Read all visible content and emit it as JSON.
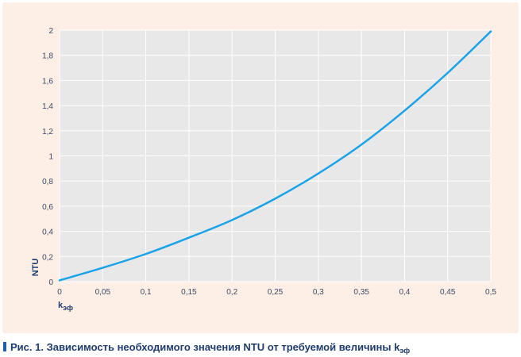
{
  "chart_data": {
    "type": "line",
    "title": "",
    "xlabel": "k",
    "xlabel_sub": "эф",
    "ylabel": "NTU",
    "xlim": [
      0,
      0.5
    ],
    "ylim": [
      0,
      2
    ],
    "grid": true,
    "x_ticks": [
      {
        "v": 0,
        "label": "0"
      },
      {
        "v": 0.05,
        "label": "0,05"
      },
      {
        "v": 0.1,
        "label": "0,1"
      },
      {
        "v": 0.15,
        "label": "0,15"
      },
      {
        "v": 0.2,
        "label": "0,2"
      },
      {
        "v": 0.25,
        "label": "0,25"
      },
      {
        "v": 0.3,
        "label": "0,3"
      },
      {
        "v": 0.35,
        "label": "0,35"
      },
      {
        "v": 0.4,
        "label": "0,4"
      },
      {
        "v": 0.45,
        "label": "0,45"
      },
      {
        "v": 0.5,
        "label": "0,5"
      }
    ],
    "y_ticks": [
      {
        "v": 0,
        "label": "0"
      },
      {
        "v": 0.2,
        "label": "0,2"
      },
      {
        "v": 0.4,
        "label": "0,4"
      },
      {
        "v": 0.6,
        "label": "0,6"
      },
      {
        "v": 0.8,
        "label": "0,8"
      },
      {
        "v": 1,
        "label": "1"
      },
      {
        "v": 1.2,
        "label": "1,2"
      },
      {
        "v": 1.4,
        "label": "1,4"
      },
      {
        "v": 1.6,
        "label": "1,6"
      },
      {
        "v": 1.8,
        "label": "1,8"
      },
      {
        "v": 2,
        "label": "2"
      }
    ],
    "series": [
      {
        "color": "#1aa3e8",
        "x": [
          0,
          0.05,
          0.1,
          0.15,
          0.2,
          0.25,
          0.3,
          0.35,
          0.4,
          0.45,
          0.5
        ],
        "y": [
          0.01,
          0.11,
          0.22,
          0.35,
          0.49,
          0.66,
          0.86,
          1.09,
          1.36,
          1.66,
          1.99
        ]
      }
    ],
    "colors": {
      "plot_bg": "#e8e8e8",
      "panel_bg": "#fdeee6",
      "grid": "#ffffff",
      "text": "#3a4a66"
    }
  },
  "caption": {
    "text": "Рис. 1. Зависимость необходимого значения NTU от требуемой величины k",
    "sub": "эф"
  }
}
